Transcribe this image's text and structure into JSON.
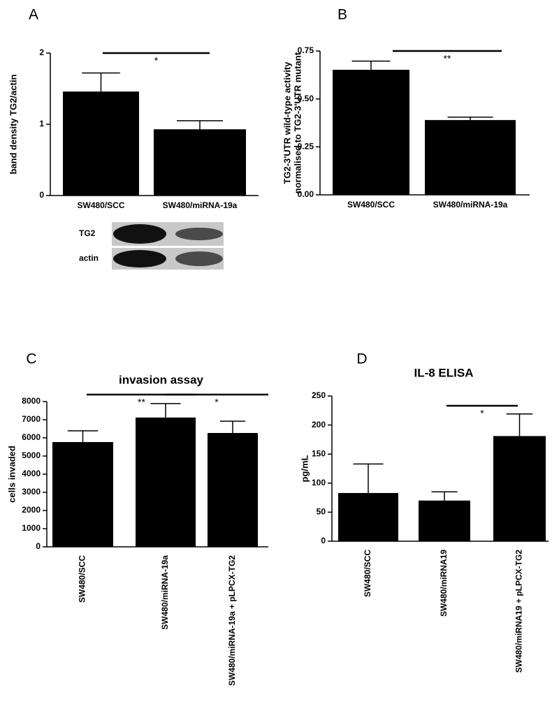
{
  "chart_data": [
    {
      "type": "bar",
      "panel": "A",
      "ylabel": "band density TG2/actin",
      "categories": [
        "SW480/SCC",
        "SW480/miRNA-19a"
      ],
      "values": [
        1.46,
        0.93
      ],
      "errors": [
        0.26,
        0.12
      ],
      "color": "#000000",
      "ylim": [
        0,
        2
      ],
      "yticks": [
        0,
        1,
        2
      ],
      "significance": [
        "*"
      ],
      "blot_labels": [
        "TG2",
        "actin"
      ]
    },
    {
      "type": "bar",
      "panel": "B",
      "ylabel": [
        "TG2-3'UTR wild-type activity",
        "normalised to TG2-3'UTR mutant"
      ],
      "categories": [
        "SW480/SCC",
        "SW480/miRNA-19a"
      ],
      "values": [
        0.652,
        0.39
      ],
      "errors": [
        0.045,
        0.015
      ],
      "color": "#000000",
      "ylim": [
        0,
        0.75
      ],
      "yticks": [
        {
          "value": 0,
          "label": "0.00"
        },
        {
          "value": 0.25,
          "label": "0.25"
        },
        {
          "value": 0.5,
          "label": "0.50"
        },
        {
          "value": 0.75,
          "label": "0.75"
        }
      ],
      "significance": [
        "**"
      ]
    },
    {
      "type": "bar",
      "panel": "C",
      "title": "invasion assay",
      "ylabel": "cells invaded",
      "categories": [
        "SW480/SCC",
        "SW480/miRNA-19a",
        "SW480/miRNA-19a + pLPCX-TG2"
      ],
      "values": [
        5770,
        7120,
        6270
      ],
      "errors": [
        620,
        770,
        650
      ],
      "color": "#000000",
      "ylim": [
        0,
        8000
      ],
      "yticks": [
        0,
        1000,
        2000,
        3000,
        4000,
        5000,
        6000,
        7000,
        8000
      ],
      "significance": [
        "**",
        "*"
      ]
    },
    {
      "type": "bar",
      "panel": "D",
      "title": "IL-8 ELISA",
      "ylabel": "pg/mL",
      "categories": [
        "SW480/SCC",
        "SW480/miRNA19",
        "SW480/miRNA19 + pLPCX-TG2"
      ],
      "values": [
        83,
        70,
        181
      ],
      "errors": [
        50,
        15,
        38
      ],
      "color": "#000000",
      "ylim": [
        0,
        250
      ],
      "yticks": [
        0,
        50,
        100,
        150,
        200,
        250
      ],
      "significance": [
        "*"
      ]
    }
  ]
}
